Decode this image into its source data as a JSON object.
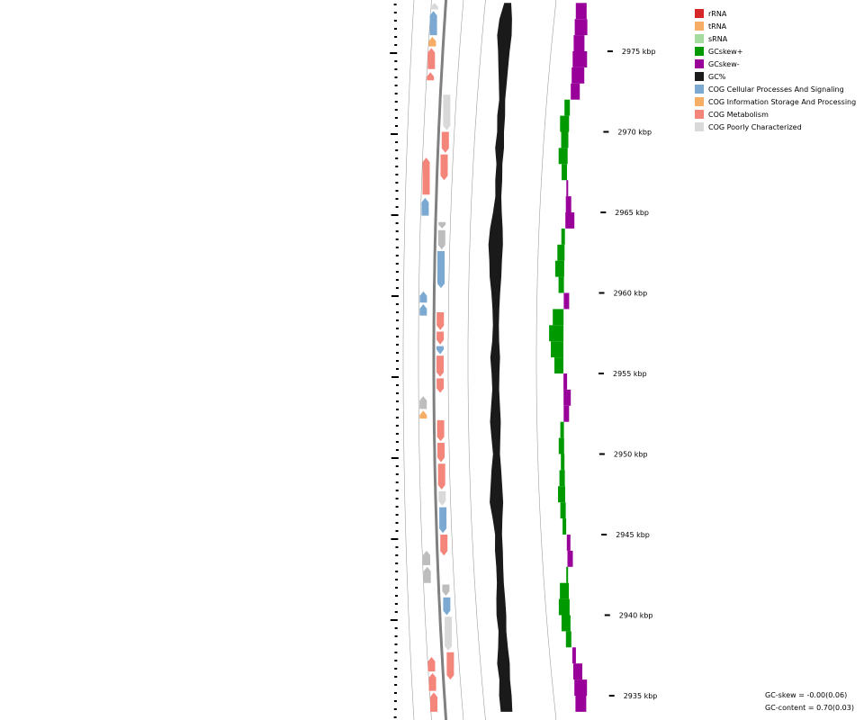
{
  "legend": [
    {
      "label": "rRNA",
      "color": "#d62728"
    },
    {
      "label": "tRNA",
      "color": "#f6ae67"
    },
    {
      "label": "sRNA",
      "color": "#a6dba0"
    },
    {
      "label": "GCskew+",
      "color": "#009900"
    },
    {
      "label": "GCskew-",
      "color": "#990099"
    },
    {
      "label": "GC%",
      "color": "#1a1a1a"
    },
    {
      "label": "COG Cellular Processes And Signaling",
      "color": "#7ba9d1"
    },
    {
      "label": "COG Information Storage And Processing",
      "color": "#f6ae67"
    },
    {
      "label": "COG Metabolism",
      "color": "#f4857a"
    },
    {
      "label": "COG Poorly Characterized",
      "color": "#d9d9d9"
    }
  ],
  "ticks": [
    {
      "label": "2975 kbp",
      "kbp": 2975
    },
    {
      "label": "2970 kbp",
      "kbp": 2970
    },
    {
      "label": "2965 kbp",
      "kbp": 2965
    },
    {
      "label": "2960 kbp",
      "kbp": 2960
    },
    {
      "label": "2955 kbp",
      "kbp": 2955
    },
    {
      "label": "2950 kbp",
      "kbp": 2950
    },
    {
      "label": "2945 kbp",
      "kbp": 2945
    },
    {
      "label": "2940 kbp",
      "kbp": 2940
    },
    {
      "label": "2935 kbp",
      "kbp": 2935
    }
  ],
  "genes_outer": [
    {
      "start": 2978.0,
      "end": 2977.6,
      "cog": "poorly",
      "dir": "rev"
    },
    {
      "start": 2977.5,
      "end": 2976.0,
      "cog": "cellular",
      "dir": "rev"
    },
    {
      "start": 2975.9,
      "end": 2975.3,
      "cog": "info",
      "dir": "rev"
    },
    {
      "start": 2975.2,
      "end": 2973.9,
      "cog": "metabolism",
      "dir": "rev"
    },
    {
      "start": 2973.7,
      "end": 2973.2,
      "cog": "metabolism",
      "dir": "rev"
    },
    {
      "start": 2968.4,
      "end": 2966.1,
      "cog": "metabolism",
      "dir": "rev"
    },
    {
      "start": 2965.9,
      "end": 2964.8,
      "cog": "cellular",
      "dir": "rev"
    },
    {
      "start": 2960.1,
      "end": 2959.4,
      "cog": "cellular",
      "dir": "rev"
    },
    {
      "start": 2959.3,
      "end": 2958.6,
      "cog": "cellular",
      "dir": "rev"
    },
    {
      "start": 2953.6,
      "end": 2952.8,
      "cog": "other",
      "dir": "rev"
    },
    {
      "start": 2952.7,
      "end": 2952.2,
      "cog": "info",
      "dir": "rev"
    },
    {
      "start": 2944.0,
      "end": 2943.1,
      "cog": "other",
      "dir": "rev"
    },
    {
      "start": 2943.0,
      "end": 2942.0,
      "cog": "other",
      "dir": "rev"
    },
    {
      "start": 2937.4,
      "end": 2936.5,
      "cog": "metabolism",
      "dir": "rev"
    },
    {
      "start": 2936.4,
      "end": 2935.3,
      "cog": "metabolism",
      "dir": "rev"
    },
    {
      "start": 2935.2,
      "end": 2934.0,
      "cog": "metabolism",
      "dir": "rev"
    }
  ],
  "genes_inner": [
    {
      "start": 2972.3,
      "end": 2970.1,
      "cog": "poorly",
      "dir": "fwd"
    },
    {
      "start": 2970.0,
      "end": 2968.7,
      "cog": "metabolism",
      "dir": "fwd"
    },
    {
      "start": 2968.6,
      "end": 2967.0,
      "cog": "metabolism",
      "dir": "fwd"
    },
    {
      "start": 2964.4,
      "end": 2964.0,
      "cog": "other",
      "dir": "fwd"
    },
    {
      "start": 2963.9,
      "end": 2962.7,
      "cog": "other",
      "dir": "fwd"
    },
    {
      "start": 2962.6,
      "end": 2960.3,
      "cog": "cellular",
      "dir": "fwd"
    },
    {
      "start": 2958.8,
      "end": 2957.7,
      "cog": "metabolism",
      "dir": "fwd"
    },
    {
      "start": 2957.6,
      "end": 2956.8,
      "cog": "metabolism",
      "dir": "fwd"
    },
    {
      "start": 2956.7,
      "end": 2956.2,
      "cog": "cellular",
      "dir": "fwd"
    },
    {
      "start": 2956.1,
      "end": 2954.8,
      "cog": "metabolism",
      "dir": "fwd"
    },
    {
      "start": 2954.7,
      "end": 2953.8,
      "cog": "metabolism",
      "dir": "fwd"
    },
    {
      "start": 2952.1,
      "end": 2950.8,
      "cog": "metabolism",
      "dir": "fwd"
    },
    {
      "start": 2950.7,
      "end": 2949.5,
      "cog": "metabolism",
      "dir": "fwd"
    },
    {
      "start": 2949.4,
      "end": 2947.8,
      "cog": "metabolism",
      "dir": "fwd"
    },
    {
      "start": 2947.7,
      "end": 2946.8,
      "cog": "poorly",
      "dir": "fwd"
    },
    {
      "start": 2946.7,
      "end": 2945.1,
      "cog": "cellular",
      "dir": "fwd"
    },
    {
      "start": 2945.0,
      "end": 2943.7,
      "cog": "metabolism",
      "dir": "fwd"
    },
    {
      "start": 2941.9,
      "end": 2941.2,
      "cog": "other",
      "dir": "fwd"
    },
    {
      "start": 2941.1,
      "end": 2940.0,
      "cog": "cellular",
      "dir": "fwd"
    },
    {
      "start": 2939.9,
      "end": 2937.8,
      "cog": "poorly",
      "dir": "fwd"
    },
    {
      "start": 2937.7,
      "end": 2936.0,
      "cog": "metabolism",
      "dir": "fwd"
    }
  ],
  "gc_content_profile": {
    "kbp": [
      2978,
      2977,
      2976,
      2975,
      2974,
      2973,
      2972,
      2971,
      2970,
      2969,
      2968,
      2967,
      2966,
      2965,
      2964,
      2963,
      2962,
      2961,
      2960,
      2959,
      2958,
      2957,
      2956,
      2955,
      2954,
      2953,
      2952,
      2951,
      2950,
      2949,
      2948,
      2947,
      2946,
      2945,
      2944,
      2943,
      2942,
      2941,
      2940,
      2939,
      2938,
      2937,
      2936,
      2935,
      2934
    ],
    "deviation": [
      0.3,
      0.9,
      1.1,
      0.8,
      0.6,
      0.4,
      0.2,
      0.4,
      0.3,
      0.5,
      0.2,
      0.3,
      0.2,
      0.5,
      0.9,
      1.1,
      0.9,
      0.8,
      0.5,
      0.3,
      0.2,
      0.3,
      0.6,
      0.4,
      0.3,
      0.5,
      0.7,
      0.5,
      0.3,
      0.6,
      0.8,
      1.0,
      0.6,
      0.3,
      0.4,
      0.3,
      0.3,
      0.5,
      0.6,
      0.4,
      0.6,
      0.9,
      0.7,
      0.9,
      0.8
    ]
  },
  "gc_skew_profile": {
    "kbp": [
      2978,
      2977,
      2976,
      2975,
      2974,
      2973,
      2972,
      2971,
      2970,
      2969,
      2968,
      2967,
      2966,
      2965,
      2964,
      2963,
      2962,
      2961,
      2960,
      2959,
      2958,
      2957,
      2956,
      2955,
      2954,
      2953,
      2952,
      2951,
      2950,
      2949,
      2948,
      2947,
      2946,
      2945,
      2944,
      2943,
      2942,
      2941,
      2940,
      2939,
      2938,
      2937,
      2936,
      2935,
      2934
    ],
    "value": [
      -0.06,
      -0.07,
      -0.06,
      -0.08,
      -0.07,
      -0.05,
      0.03,
      0.05,
      0.04,
      0.05,
      0.03,
      -0.01,
      -0.03,
      -0.05,
      0.02,
      0.04,
      0.05,
      0.03,
      -0.03,
      0.06,
      0.08,
      0.07,
      0.05,
      -0.02,
      -0.04,
      -0.03,
      0.02,
      0.03,
      0.02,
      0.03,
      0.04,
      0.03,
      0.02,
      -0.02,
      -0.03,
      0.01,
      0.05,
      0.06,
      0.05,
      0.03,
      -0.02,
      -0.05,
      -0.07,
      -0.06,
      -0.03
    ]
  },
  "stats": {
    "gc_skew": "GC-skew = -0.00(0.06)",
    "gc_content": "GC-content = 0.70(0.03)"
  }
}
